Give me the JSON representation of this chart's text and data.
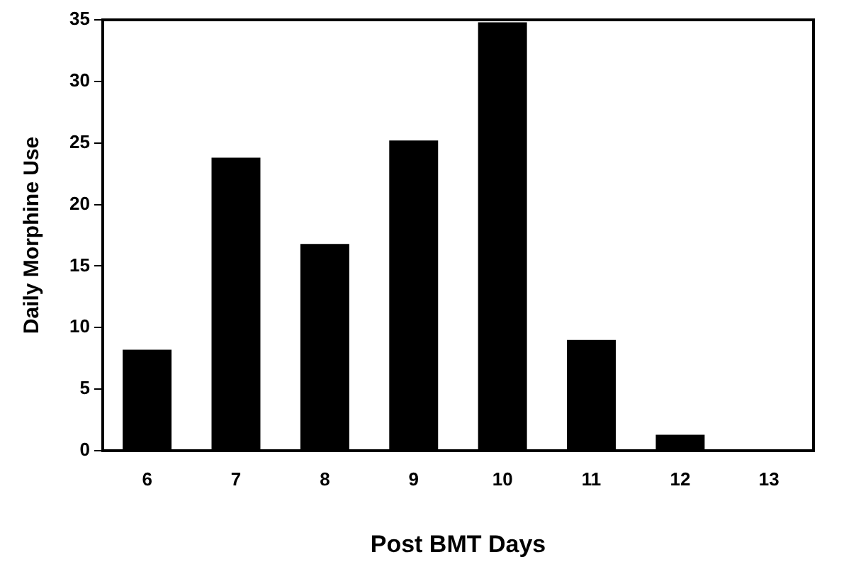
{
  "chart_data": {
    "type": "bar",
    "xlabel": "Post BMT Days",
    "ylabel": "Daily Morphine Use",
    "categories": [
      "6",
      "7",
      "8",
      "9",
      "10",
      "11",
      "12",
      "13"
    ],
    "values": [
      8.2,
      23.8,
      16.8,
      25.2,
      34.8,
      9.0,
      1.3,
      null
    ],
    "color": "#000000",
    "ylim": [
      0,
      35
    ],
    "yticks": [
      0,
      5,
      10,
      15,
      20,
      25,
      30,
      35
    ],
    "grid": false,
    "legend": false
  }
}
